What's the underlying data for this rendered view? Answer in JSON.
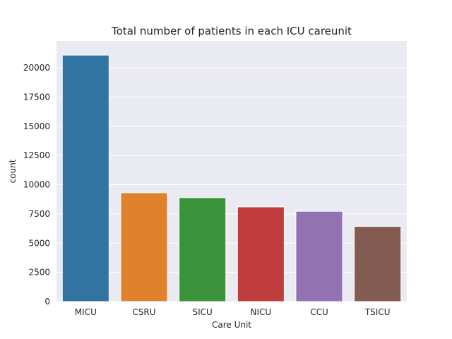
{
  "chart_data": {
    "type": "bar",
    "title": "Total number of patients in each ICU careunit",
    "xlabel": "Care Unit",
    "ylabel": "count",
    "categories": [
      "MICU",
      "CSRU",
      "SICU",
      "NICU",
      "CCU",
      "TSICU"
    ],
    "values": [
      21087,
      9312,
      8891,
      8100,
      7726,
      6431
    ],
    "colors": [
      "#3274a1",
      "#e1812c",
      "#3a923a",
      "#c03d3e",
      "#9372b2",
      "#845b53"
    ],
    "ylim": [
      0,
      22300
    ],
    "yticks": [
      0,
      2500,
      5000,
      7500,
      10000,
      12500,
      15000,
      17500,
      20000
    ],
    "grid": true,
    "background": "#eaeaf2"
  }
}
